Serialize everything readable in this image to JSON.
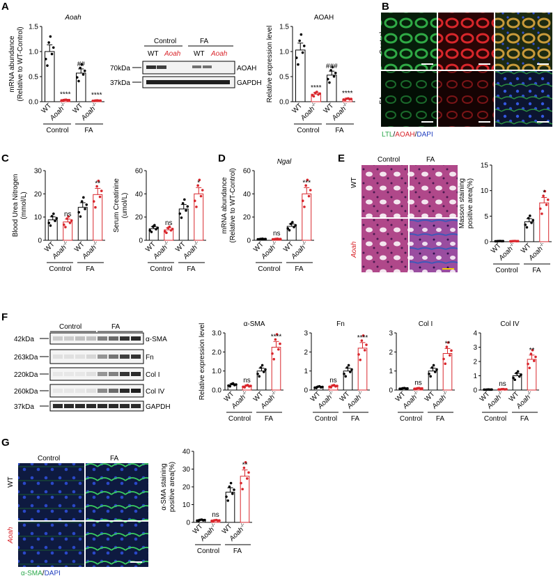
{
  "panels": {
    "A": "A",
    "B": "B",
    "C": "C",
    "D": "D",
    "E": "E",
    "F": "F",
    "G": "G"
  },
  "groups": {
    "control": "Control",
    "fa": "FA",
    "wt": "WT",
    "aoah": "Aoah",
    "ko_sup": "-/-"
  },
  "colors": {
    "wt": "#000000",
    "ko": "#d9262c",
    "ltl": "#2aa84a",
    "aoah_stain": "#d9262c",
    "dapi": "#2240c0"
  },
  "charts": {
    "aoah_mrna": {
      "title": "Aoah",
      "ylabel": "mRNA abundance",
      "ylabel2": "(Relative to WT-Control)",
      "yticks": [
        "0.0",
        "0.5",
        "1.0",
        "1.5"
      ],
      "ylim": [
        0,
        1.5
      ],
      "values": [
        1.0,
        0.03,
        0.57,
        0.02
      ],
      "sig": [
        "",
        "****",
        "##",
        "****"
      ]
    },
    "aoah_protein": {
      "title": "AOAH",
      "ylabel": "Relative expression level",
      "yticks": [
        "0.0",
        "0.5",
        "1.0",
        "1.5"
      ],
      "ylim": [
        0,
        1.5
      ],
      "values": [
        1.03,
        0.15,
        0.53,
        0.05
      ],
      "sig": [
        "",
        "****",
        "###",
        "****"
      ]
    },
    "bun": {
      "ylabel": "Blood Urea Nitrogen",
      "ylabel2": "(mmol/L)",
      "yticks": [
        "0",
        "10",
        "20",
        "30"
      ],
      "ylim": [
        0,
        30
      ],
      "values": [
        8.8,
        7.9,
        14.2,
        19.7
      ],
      "sig": [
        "",
        "ns",
        "",
        "**"
      ]
    },
    "scr": {
      "ylabel": "Serum Creatinine",
      "ylabel2": "(umol/L)",
      "yticks": [
        "0",
        "20",
        "40",
        "60"
      ],
      "ylim": [
        0,
        60
      ],
      "values": [
        10,
        9,
        27,
        40
      ],
      "sig": [
        "",
        "ns",
        "",
        "*"
      ]
    },
    "ngal": {
      "title": "Ngal",
      "ylabel": "mRNA abundance",
      "ylabel2": "(Relative to WT-Control)",
      "yticks": [
        "0",
        "20",
        "40",
        "60"
      ],
      "ylim": [
        0,
        60
      ],
      "values": [
        1,
        1,
        12,
        40
      ],
      "sig": [
        "",
        "ns",
        "",
        "***"
      ]
    },
    "masson": {
      "ylabel": "Masson staining",
      "ylabel2": "positive area(%)",
      "yticks": [
        "0",
        "5",
        "10",
        "15"
      ],
      "ylim": [
        0,
        15
      ],
      "values": [
        0.1,
        0.1,
        3.9,
        7.6
      ],
      "sig": [
        "",
        "",
        "",
        "*"
      ]
    },
    "asma": {
      "title": "α-SMA",
      "ylabel": "Relative expression level",
      "yticks": [
        "0.0",
        "1.0",
        "2.0",
        "3.0"
      ],
      "ylim": [
        0,
        3
      ],
      "values": [
        0.27,
        0.2,
        1.0,
        2.25
      ],
      "sig": [
        "",
        "ns",
        "",
        "****"
      ]
    },
    "fn": {
      "title": "Fn",
      "yticks": [
        "0",
        "1",
        "2",
        "3"
      ],
      "ylim": [
        0,
        3
      ],
      "values": [
        0.15,
        0.2,
        1.0,
        2.2
      ],
      "sig": [
        "",
        "ns",
        "",
        "****"
      ]
    },
    "col1": {
      "title": "Col I",
      "yticks": [
        "0",
        "1",
        "2",
        "3"
      ],
      "ylim": [
        0,
        3
      ],
      "values": [
        0.08,
        0.08,
        1.0,
        1.92
      ],
      "sig": [
        "",
        "ns",
        "",
        "**"
      ]
    },
    "col4": {
      "title": "Col IV",
      "yticks": [
        "0",
        "1",
        "2",
        "3",
        "4"
      ],
      "ylim": [
        0,
        4
      ],
      "values": [
        0.03,
        0.05,
        1.0,
        2.15
      ],
      "sig": [
        "",
        "ns",
        "",
        "**"
      ]
    },
    "asma_stain": {
      "ylabel": "α-SMA staining",
      "ylabel2": "positive area(%)",
      "yticks": [
        "0",
        "10",
        "20",
        "30",
        "40"
      ],
      "ylim": [
        0,
        40
      ],
      "values": [
        1.2,
        1.0,
        17.0,
        26.0
      ],
      "sig": [
        "",
        "ns",
        "",
        "**"
      ]
    }
  },
  "blots": {
    "a": {
      "markers": [
        "70kDa",
        "37kDa"
      ],
      "labels": [
        "AOAH",
        "GAPDH"
      ]
    },
    "f": {
      "markers": [
        "42kDa",
        "263kDa",
        "220kDa",
        "260kDa",
        "37kDa"
      ],
      "labels": [
        "α-SMA",
        "Fn",
        "Col I",
        "Col IV",
        "GAPDH"
      ]
    }
  },
  "stain_legends": {
    "b": [
      "LTL",
      "/",
      "AOAH",
      "/",
      "DAPI"
    ],
    "g": [
      "α-SMA",
      "/",
      "DAPI"
    ]
  }
}
